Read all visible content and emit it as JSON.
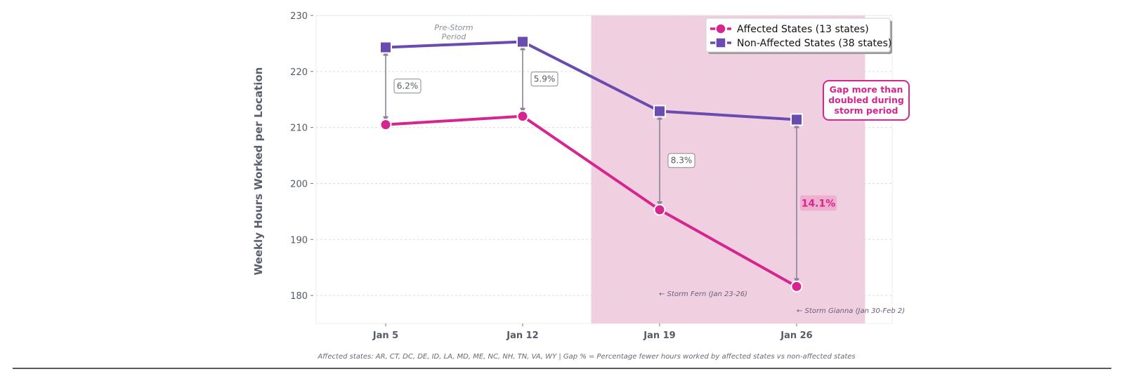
{
  "chart_data": {
    "type": "line",
    "categories": [
      "Jan 5",
      "Jan 12",
      "Jan 19",
      "Jan 26"
    ],
    "ylabel": "Weekly Hours Worked per Location",
    "ylim": [
      175,
      230
    ],
    "yticks": [
      180,
      190,
      200,
      210,
      220,
      230
    ],
    "grid": true,
    "legend_position": "top-right",
    "series": [
      {
        "name": "Affected States (13 states)",
        "color": "#d6258f",
        "marker": "circle",
        "values": [
          210.5,
          212.0,
          195.3,
          181.6
        ]
      },
      {
        "name": "Non-Affected States (38 states)",
        "color": "#6a4bb0",
        "marker": "square",
        "values": [
          224.3,
          225.3,
          212.9,
          211.4
        ]
      }
    ],
    "gaps": [
      {
        "category": "Jan 5",
        "label": "6.2%",
        "highlight": false
      },
      {
        "category": "Jan 12",
        "label": "5.9%",
        "highlight": false
      },
      {
        "category": "Jan 19",
        "label": "8.3%",
        "highlight": false
      },
      {
        "category": "Jan 26",
        "label": "14.1%",
        "highlight": true
      }
    ],
    "shaded_region": {
      "from_category": "Jan 12",
      "to_category": "Jan 26",
      "color": "#f0d0e0"
    },
    "annotations": {
      "pre_storm": [
        "Pre-Storm",
        "Period"
      ],
      "storm_fern": "← Storm Fern (Jan 23-26)",
      "storm_gianna": "← Storm Gianna (Jan 30-Feb 2)",
      "callout": [
        "Gap more than",
        "doubled during",
        "storm period"
      ]
    },
    "footnote": "Affected states: AR, CT, DC, DE, ID, LA, MD, ME, NC, NH, TN, VA, WY  |  Gap % = Percentage fewer hours worked by affected states vs non-affected states"
  }
}
